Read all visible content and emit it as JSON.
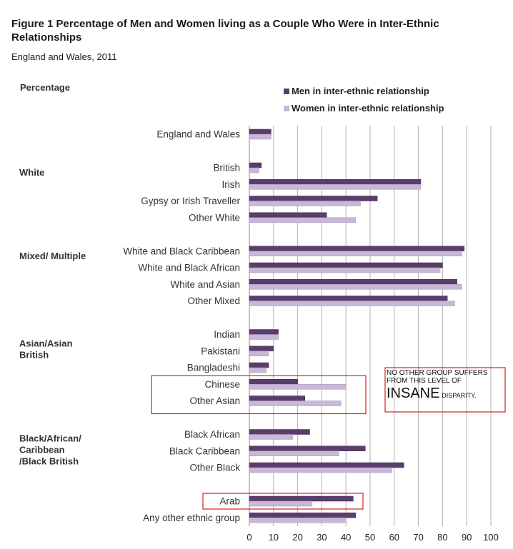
{
  "figure": {
    "title": "Figure 1 Percentage of Men and Women living as a Couple Who Were in Inter-Ethnic Relationships",
    "subtitle": "England and Wales, 2011"
  },
  "annotation": {
    "line1": "NO OTHER GROUP SUFFERS",
    "line2": "FROM THIS LEVEL OF",
    "emphasis": "INSANE",
    "tail": "DISPARITY."
  },
  "highlighted_categories": [
    "Chinese",
    "Other Asian",
    "Arab"
  ],
  "colors": {
    "men": "#5a3d6b",
    "women": "#c7b8d6",
    "grid": "#b0b0b0",
    "highlight": "#d42020"
  },
  "chart_data": {
    "type": "bar",
    "orientation": "horizontal",
    "ylabel": "Percentage",
    "xlim": [
      0,
      100
    ],
    "x_ticks": [
      0,
      10,
      20,
      30,
      40,
      50,
      60,
      70,
      80,
      90,
      100
    ],
    "grid": true,
    "legend_position": "top-right",
    "groups": [
      {
        "label": "",
        "items": [
          "England and Wales"
        ]
      },
      {
        "label": "White",
        "items": [
          "British",
          "Irish",
          "Gypsy or Irish Traveller",
          "Other White"
        ]
      },
      {
        "label": "Mixed/ Multiple",
        "items": [
          "White and Black Caribbean",
          "White and Black African",
          "White and Asian",
          "Other Mixed"
        ]
      },
      {
        "label": "Asian/Asian British",
        "items": [
          "Indian",
          "Pakistani",
          "Bangladeshi",
          "Chinese",
          "Other Asian"
        ]
      },
      {
        "label": "Black/African/ Caribbean /Black British",
        "items": [
          "Black African",
          "Black Caribbean",
          "Other Black"
        ]
      },
      {
        "label": "",
        "items": [
          "Arab",
          "Any other ethnic group"
        ]
      }
    ],
    "categories": [
      "England and Wales",
      "British",
      "Irish",
      "Gypsy or Irish Traveller",
      "Other White",
      "White and Black Caribbean",
      "White and Black African",
      "White and Asian",
      "Other Mixed",
      "Indian",
      "Pakistani",
      "Bangladeshi",
      "Chinese",
      "Other Asian",
      "Black African",
      "Black Caribbean",
      "Other Black",
      "Arab",
      "Any other ethnic group"
    ],
    "series": [
      {
        "name": "Men in inter-ethnic  relationship",
        "values": [
          9,
          5,
          71,
          53,
          32,
          89,
          80,
          86,
          82,
          12,
          10,
          8,
          20,
          23,
          25,
          48,
          64,
          43,
          44
        ]
      },
      {
        "name": "Women in inter-ethnic  relationship",
        "values": [
          9,
          4,
          71,
          46,
          44,
          88,
          79,
          88,
          85,
          12,
          8,
          7,
          40,
          38,
          18,
          37,
          59,
          26,
          40
        ]
      }
    ]
  }
}
